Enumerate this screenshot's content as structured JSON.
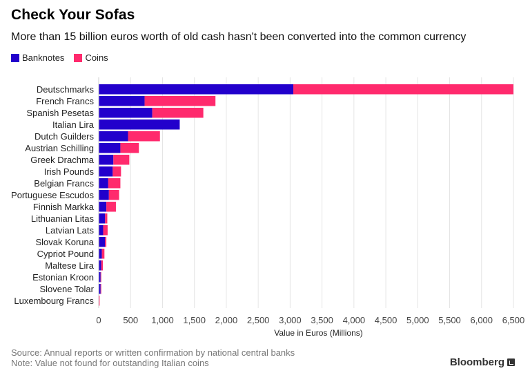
{
  "title": "Check Your Sofas",
  "subtitle": "More than 15 billion euros worth of old cash hasn't been converted into the common currency",
  "legend": [
    {
      "label": "Banknotes",
      "color": "#2200cc"
    },
    {
      "label": "Coins",
      "color": "#ff2a6d"
    }
  ],
  "footer": {
    "source": "Source: Annual reports or written confirmation by national central banks",
    "note": "Note: Value not found for outstanding Italian coins",
    "brand": "Bloomberg"
  },
  "chart_data": {
    "type": "bar",
    "orientation": "horizontal",
    "stacked": true,
    "xlabel": "Value in Euros (Millions)",
    "ylabel": "",
    "xlim": [
      0,
      6500
    ],
    "xticks": [
      0,
      500,
      1000,
      1500,
      2000,
      2500,
      3000,
      3500,
      4000,
      4500,
      5000,
      5500,
      6000,
      6500
    ],
    "xtick_labels": [
      "0",
      "500",
      "1,000",
      "1,500",
      "2,000",
      "2,500",
      "3,000",
      "3,500",
      "4,000",
      "4,500",
      "5,000",
      "5,500",
      "6,000",
      "6,500"
    ],
    "grid": true,
    "categories": [
      "Deutschmarks",
      "French Francs",
      "Spanish Pesetas",
      "Italian Lira",
      "Dutch Guilders",
      "Austrian Schilling",
      "Greek Drachma",
      "Irish Pounds",
      "Belgian Francs",
      "Portuguese Escudos",
      "Finnish Markka",
      "Lithuanian Litas",
      "Latvian Lats",
      "Slovak Koruna",
      "Cypriot Pound",
      "Maltese Lira",
      "Estonian Kroon",
      "Slovene Tolar",
      "Luxembourg Francs"
    ],
    "series": [
      {
        "name": "Banknotes",
        "color": "#2200cc",
        "values": [
          3050,
          720,
          840,
          1270,
          460,
          340,
          230,
          220,
          150,
          160,
          120,
          100,
          70,
          100,
          50,
          40,
          30,
          30,
          5
        ]
      },
      {
        "name": "Coins",
        "color": "#ff2a6d",
        "values": [
          3450,
          1110,
          800,
          0,
          500,
          290,
          250,
          130,
          190,
          160,
          150,
          35,
          70,
          20,
          40,
          25,
          10,
          10,
          10
        ]
      }
    ]
  }
}
